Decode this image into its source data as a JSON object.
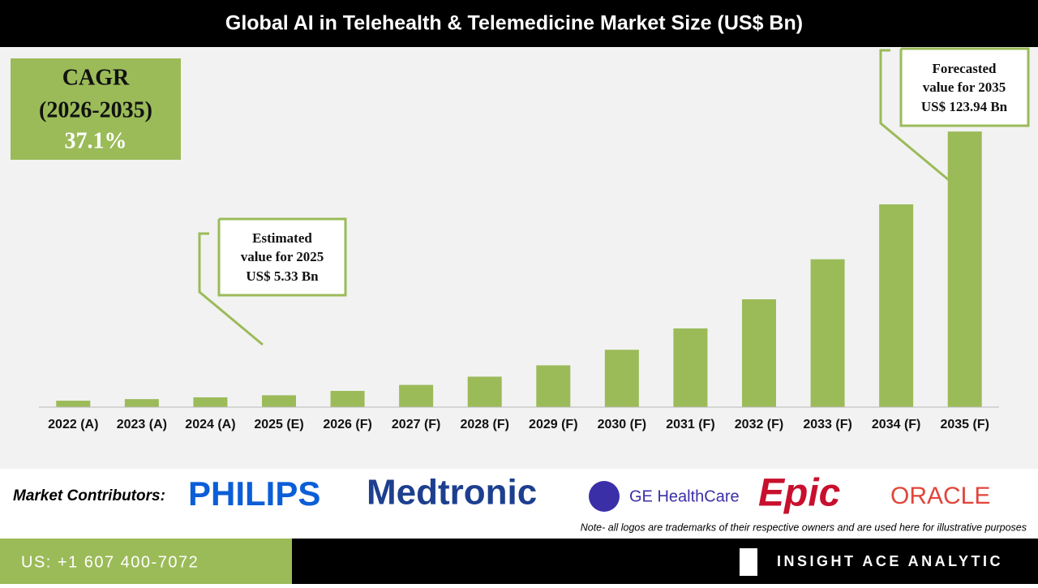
{
  "chart_data": {
    "type": "bar",
    "title": "Global AI in Telehealth & Telemedicine Market Size (US$ Bn)",
    "categories": [
      "2022 (A)",
      "2023 (A)",
      "2024 (A)",
      "2025 (E)",
      "2026 (F)",
      "2027 (F)",
      "2028 (F)",
      "2029 (F)",
      "2030 (F)",
      "2031 (F)",
      "2032 (F)",
      "2033 (F)",
      "2034 (F)",
      "2035 (F)"
    ],
    "values": [
      2.9,
      3.6,
      4.4,
      5.33,
      7.3,
      10.0,
      13.7,
      18.8,
      25.8,
      35.4,
      48.5,
      66.5,
      91.2,
      123.94
    ],
    "color": "#9bbb59",
    "ylim": [
      0,
      124
    ],
    "cagr": {
      "title": "CAGR",
      "period": "(2026-2035)",
      "value": "37.1%"
    },
    "annotations": [
      {
        "lines": [
          "Estimated",
          "value for 2025",
          "US$ 5.33 Bn"
        ]
      },
      {
        "lines": [
          "Forecasted",
          "value for 2035",
          "US$ 123.94 Bn"
        ]
      }
    ]
  },
  "contributors": {
    "label": "Market Contributors:",
    "logos": [
      "PHILIPS",
      "Medtronic",
      "GE HealthCare",
      "Epic",
      "ORACLE"
    ]
  },
  "note": "Note- all logos are trademarks of their respective owners and are used here for illustrative purposes",
  "footer": {
    "phone": "US: +1 607 400-7072",
    "brand": "INSIGHT ACE ANALYTIC"
  }
}
